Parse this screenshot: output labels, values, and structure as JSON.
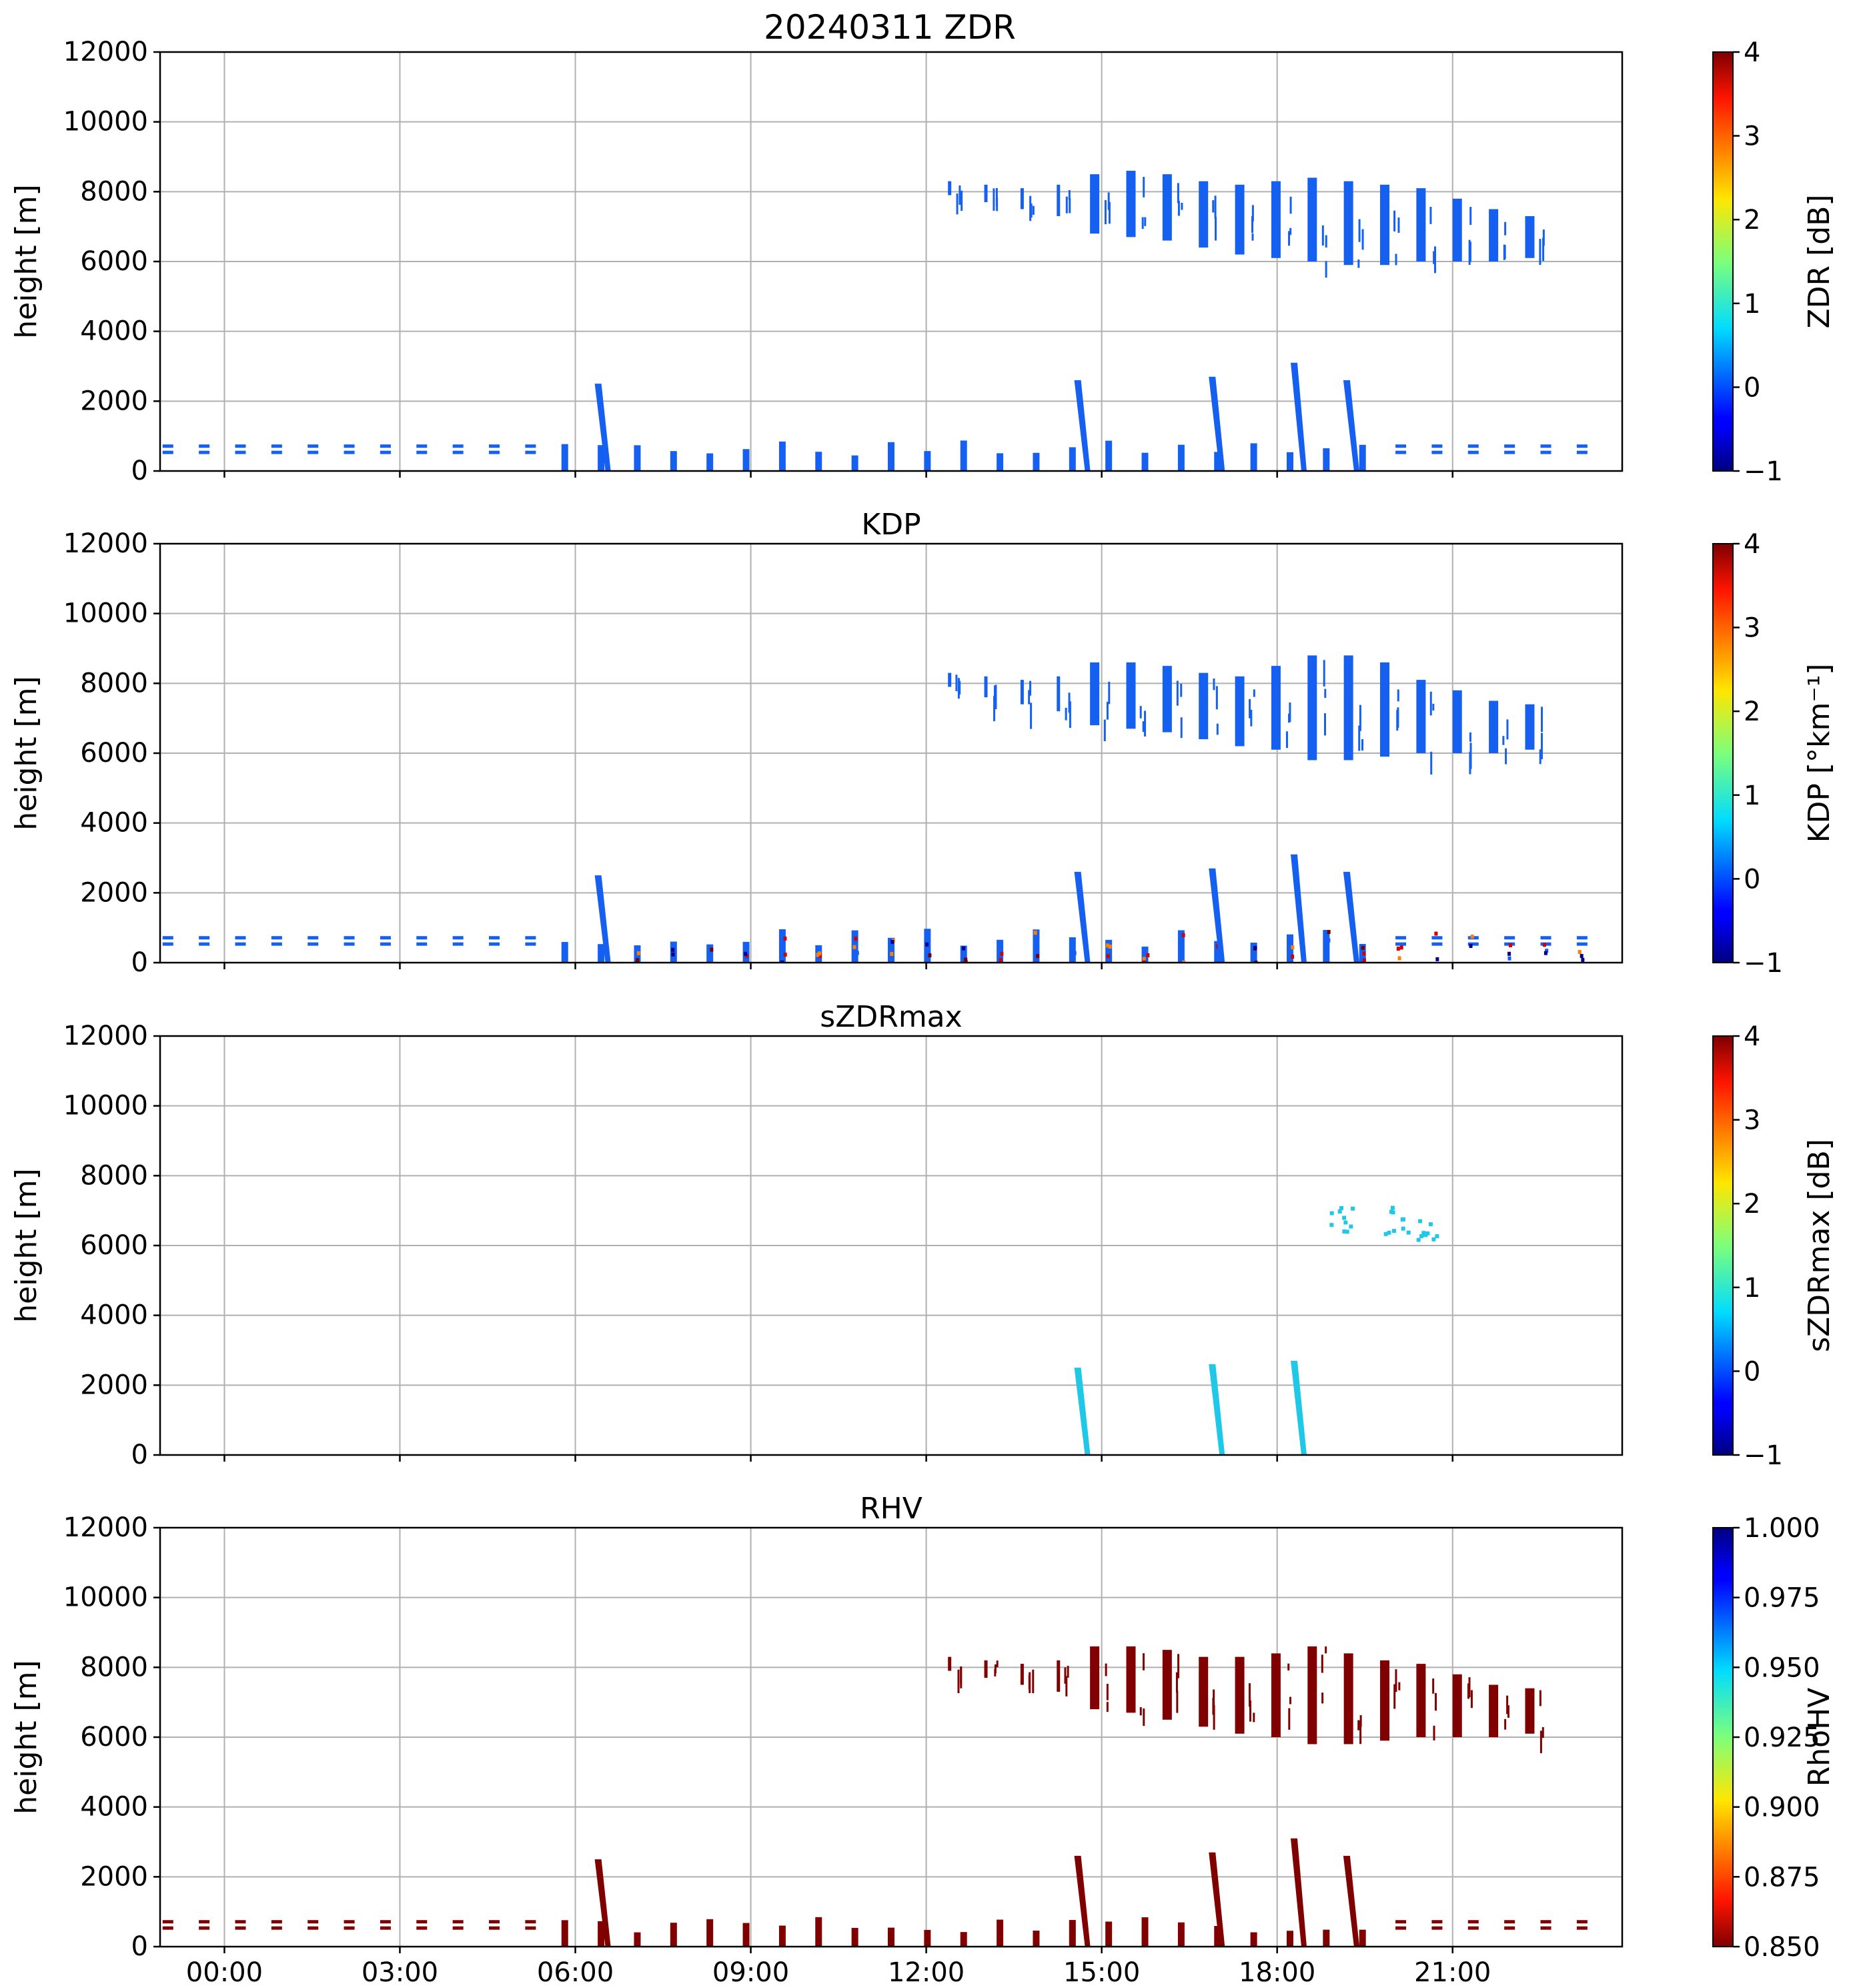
{
  "figure_title": "20240311 ZDR",
  "chart_data": [
    {
      "type": "heatmap",
      "title": "",
      "ylabel": "height [m]",
      "xlabel": "",
      "ylim": [
        0,
        12000
      ],
      "xlim_hours": [
        -1.1,
        23.9
      ],
      "yticks": [
        "0",
        "2000",
        "4000",
        "6000",
        "8000",
        "10000",
        "12000"
      ],
      "xticks": [],
      "grid": true,
      "colorbar": {
        "label": "ZDR [dB]",
        "range": [
          -1,
          4
        ],
        "ticks": [
          "−1",
          "0",
          "1",
          "2",
          "3",
          "4"
        ],
        "colormap": "jet"
      },
      "echo_color": "#1560f0",
      "upper_cloud": {
        "start_hour": 12.4,
        "top_m": [
          8300,
          8200,
          8100,
          8200,
          8500,
          8600,
          8500,
          8300,
          8200,
          8300,
          8400,
          8300,
          8200,
          8100,
          7800,
          7500,
          7300
        ],
        "base_m": [
          7900,
          7700,
          7500,
          7300,
          6800,
          6700,
          6600,
          6400,
          6200,
          6100,
          6000,
          5900,
          5900,
          6000,
          6000,
          6000,
          6100
        ]
      },
      "low_echo_top_m": 800,
      "plume_hours": [
        6.4,
        14.6,
        16.9,
        18.3,
        19.2
      ]
    },
    {
      "type": "heatmap",
      "title": "KDP",
      "ylabel": "height [m]",
      "xlabel": "",
      "ylim": [
        0,
        12000
      ],
      "xlim_hours": [
        -1.1,
        23.9
      ],
      "yticks": [
        "0",
        "2000",
        "4000",
        "6000",
        "8000",
        "10000",
        "12000"
      ],
      "xticks": [],
      "grid": true,
      "colorbar": {
        "label": "KDP [°km⁻¹]",
        "range": [
          -1,
          4
        ],
        "ticks": [
          "−1",
          "0",
          "1",
          "2",
          "3",
          "4"
        ],
        "colormap": "jet"
      },
      "echo_color": "#1560f0",
      "upper_cloud": {
        "start_hour": 12.4,
        "top_m": [
          8300,
          8200,
          8100,
          8200,
          8600,
          8600,
          8500,
          8300,
          8200,
          8500,
          8800,
          8800,
          8600,
          8100,
          7800,
          7500,
          7400
        ],
        "base_m": [
          7900,
          7600,
          7400,
          7200,
          6800,
          6700,
          6600,
          6400,
          6200,
          6100,
          5800,
          5800,
          5900,
          6000,
          6000,
          6000,
          6100
        ]
      },
      "low_echo_top_m": 900,
      "plume_hours": [
        6.4,
        14.6,
        16.9,
        18.3,
        19.2
      ],
      "speckle_colors": [
        "#7a0000",
        "#d40000",
        "#ff8000",
        "#1560f0",
        "#00008b"
      ]
    },
    {
      "type": "heatmap",
      "title": "sZDRmax",
      "ylabel": "height [m]",
      "xlabel": "",
      "ylim": [
        0,
        12000
      ],
      "xlim_hours": [
        -1.1,
        23.9
      ],
      "yticks": [
        "0",
        "2000",
        "4000",
        "6000",
        "8000",
        "10000",
        "12000"
      ],
      "xticks": [],
      "grid": true,
      "colorbar": {
        "label": "sZDRmax [dB]",
        "range": [
          -1,
          4
        ],
        "ticks": [
          "−1",
          "0",
          "1",
          "2",
          "3",
          "4"
        ],
        "colormap": "jet"
      },
      "echo_color": "#20c8e8",
      "sparse_patches_m": [
        [
          19.1,
          6400,
          7200
        ],
        [
          20.0,
          6300,
          7400
        ],
        [
          20.6,
          6200,
          6800
        ]
      ],
      "plume_hours": [
        14.6,
        16.9,
        18.3
      ]
    },
    {
      "type": "heatmap",
      "title": "RHV",
      "ylabel": "height [m]",
      "xlabel": "",
      "ylim": [
        0,
        12000
      ],
      "xlim_hours": [
        -1.1,
        23.9
      ],
      "yticks": [
        "0",
        "2000",
        "4000",
        "6000",
        "8000",
        "10000",
        "12000"
      ],
      "xticks": [
        "00:00",
        "03:00",
        "06:00",
        "09:00",
        "12:00",
        "15:00",
        "18:00",
        "21:00"
      ],
      "grid": true,
      "colorbar": {
        "label": "RhoHV",
        "range": [
          0.85,
          1.0
        ],
        "ticks": [
          "0.850",
          "0.875",
          "0.900",
          "0.925",
          "0.950",
          "0.975",
          "1.000"
        ],
        "colormap": "jet_r"
      },
      "echo_color": "#800000",
      "upper_cloud": {
        "start_hour": 12.4,
        "top_m": [
          8300,
          8200,
          8100,
          8200,
          8600,
          8600,
          8500,
          8300,
          8300,
          8400,
          8600,
          8400,
          8200,
          8100,
          7800,
          7500,
          7400
        ],
        "base_m": [
          7900,
          7700,
          7500,
          7300,
          6800,
          6700,
          6500,
          6300,
          6100,
          6000,
          5800,
          5800,
          5900,
          6000,
          6000,
          6000,
          6100
        ]
      },
      "low_echo_top_m": 800,
      "plume_hours": [
        6.4,
        14.6,
        16.9,
        18.3,
        19.2
      ]
    }
  ]
}
